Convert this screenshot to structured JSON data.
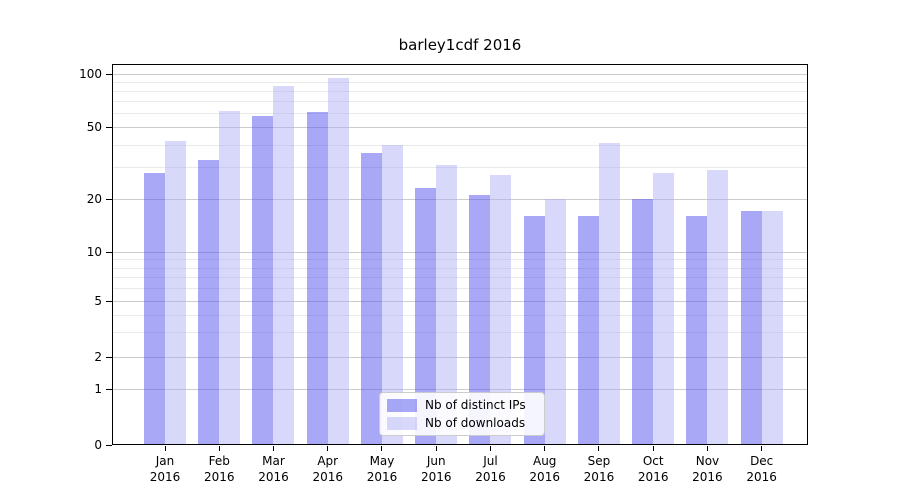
{
  "title": "barley1cdf 2016",
  "chart_data": {
    "type": "bar",
    "title": "barley1cdf 2016",
    "categories": [
      "Jan 2016",
      "Feb 2016",
      "Mar 2016",
      "Apr 2016",
      "May 2016",
      "Jun 2016",
      "Jul 2016",
      "Aug 2016",
      "Sep 2016",
      "Oct 2016",
      "Nov 2016",
      "Dec 2016"
    ],
    "x_tick_months": [
      "Jan",
      "Feb",
      "Mar",
      "Apr",
      "May",
      "Jun",
      "Jul",
      "Aug",
      "Sep",
      "Oct",
      "Nov",
      "Dec"
    ],
    "x_tick_year": "2016",
    "series": [
      {
        "name": "Nb of distinct IPs",
        "color": "#a7a7f4",
        "fill": "rgba(82,82,237,0.50)",
        "values": [
          28,
          33,
          58,
          61,
          36,
          23,
          21,
          16,
          16,
          20,
          16,
          17
        ]
      },
      {
        "name": "Nb of downloads",
        "color": "#d9d9f9",
        "fill": "rgba(168,168,243,0.45)",
        "values": [
          42,
          62,
          85,
          95,
          40,
          31,
          27,
          20,
          41,
          28,
          29,
          17
        ]
      }
    ],
    "yscale": "log-like",
    "ylim": [
      0,
      100
    ],
    "y_ticks": [
      0,
      1,
      2,
      5,
      10,
      20,
      50,
      100
    ],
    "y_minor_ticks": [
      3,
      4,
      6,
      7,
      8,
      9,
      30,
      40,
      60,
      70,
      80,
      90
    ],
    "xlabel": "",
    "ylabel": "",
    "grid": "horizontal",
    "legend_position": "lower center"
  },
  "colors": {
    "major_grid": "#cccccc",
    "minor_grid": "#e9e9e9",
    "axis": "#000000",
    "text": "#000000",
    "legend_border": "#cccccc"
  }
}
